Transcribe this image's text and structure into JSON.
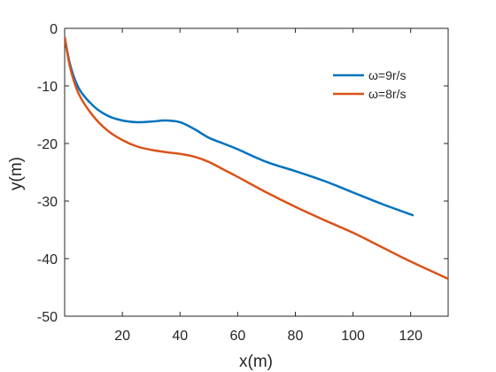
{
  "chart_data": {
    "type": "line",
    "title": "",
    "xlabel": "x(m)",
    "ylabel": "y(m)",
    "xlim": [
      0,
      133
    ],
    "ylim": [
      -50,
      0
    ],
    "xticks": [
      20,
      40,
      60,
      80,
      100,
      120
    ],
    "xtick_labels": [
      "20",
      "40",
      "60",
      "80",
      "100",
      "120"
    ],
    "yticks": [
      0,
      -10,
      -20,
      -30,
      -40,
      -50
    ],
    "ytick_labels": [
      "0",
      "-10",
      "-20",
      "-30",
      "-40",
      "-50"
    ],
    "grid": false,
    "legend_position": "top-right",
    "series": [
      {
        "name": "ω=9r/s",
        "color": "#0072BD",
        "x": [
          0,
          2,
          5,
          10,
          15,
          20,
          25,
          30,
          35,
          40,
          45,
          50,
          55,
          60,
          70,
          80,
          90,
          100,
          110,
          121
        ],
        "y": [
          -1.5,
          -6.5,
          -10.5,
          -13.5,
          -15.2,
          -16.0,
          -16.3,
          -16.2,
          -16.0,
          -16.3,
          -17.5,
          -19.0,
          -20.0,
          -21.0,
          -23.2,
          -24.8,
          -26.5,
          -28.5,
          -30.5,
          -32.5
        ]
      },
      {
        "name": "ω=8r/s",
        "color": "#D95319",
        "x": [
          0,
          2,
          5,
          10,
          15,
          20,
          25,
          30,
          35,
          40,
          45,
          50,
          55,
          60,
          70,
          80,
          90,
          100,
          110,
          120,
          133
        ],
        "y": [
          -1.5,
          -7.0,
          -11.5,
          -15.3,
          -17.8,
          -19.4,
          -20.5,
          -21.1,
          -21.5,
          -21.8,
          -22.3,
          -23.2,
          -24.5,
          -25.8,
          -28.5,
          -31.0,
          -33.3,
          -35.5,
          -38.0,
          -40.5,
          -43.5
        ]
      }
    ]
  }
}
